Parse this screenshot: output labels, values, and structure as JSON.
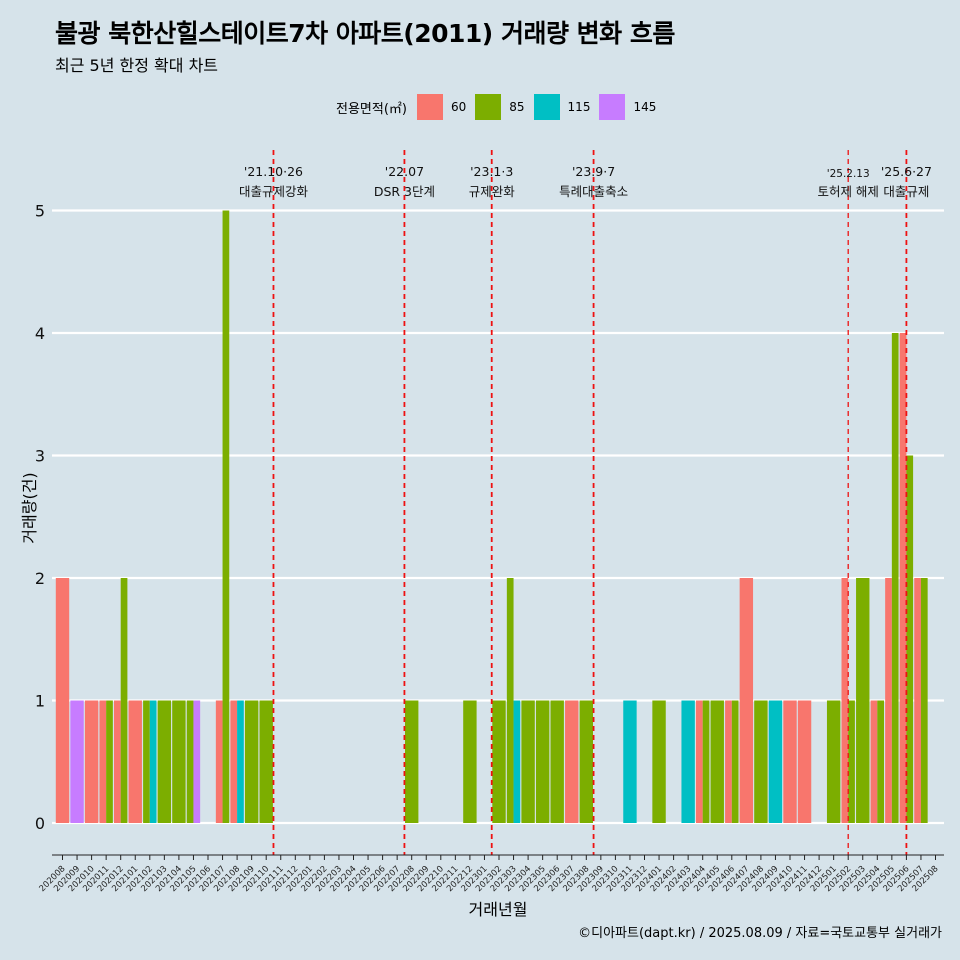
{
  "title": "불광 북한산힐스테이트7차 아파트(2011) 거래량 변화 흐름",
  "subtitle": "최근 5년 한정 확대 차트",
  "caption": "©디아파트(dapt.kr) / 2025.08.09 / 자료=국토교통부 실거래가",
  "legend": {
    "title": "전용면적(㎡)",
    "items": [
      {
        "label": "60",
        "color": "#F8766D"
      },
      {
        "label": "85",
        "color": "#7CAE00"
      },
      {
        "label": "115",
        "color": "#00BFC4"
      },
      {
        "label": "145",
        "color": "#C77CFF"
      }
    ]
  },
  "chart_data": {
    "type": "bar",
    "stacking": "dodged",
    "title": "불광 북한산힐스테이트7차 아파트(2011) 거래량 변화 흐름",
    "xlabel": "거래년월",
    "ylabel": "거래량(건)",
    "ylim": [
      0,
      5
    ],
    "yticks": [
      0,
      1,
      2,
      3,
      4,
      5
    ],
    "grid": "horizontal",
    "legend_position": "top",
    "categories": [
      "202008",
      "202009",
      "202010",
      "202011",
      "202012",
      "202101",
      "202102",
      "202103",
      "202104",
      "202105",
      "202106",
      "202107",
      "202108",
      "202109",
      "202110",
      "202111",
      "202112",
      "202201",
      "202202",
      "202203",
      "202204",
      "202205",
      "202206",
      "202207",
      "202208",
      "202209",
      "202210",
      "202211",
      "202212",
      "202301",
      "202302",
      "202303",
      "202304",
      "202305",
      "202306",
      "202307",
      "202308",
      "202309",
      "202310",
      "202311",
      "202312",
      "202401",
      "202402",
      "202403",
      "202404",
      "202405",
      "202406",
      "202407",
      "202408",
      "202409",
      "202410",
      "202411",
      "202412",
      "202501",
      "202502",
      "202503",
      "202504",
      "202505",
      "202506",
      "202507",
      "202508"
    ],
    "data": [
      {
        "month": "202008",
        "values": {
          "60": 2
        }
      },
      {
        "month": "202009",
        "values": {
          "145": 1
        }
      },
      {
        "month": "202010",
        "values": {
          "60": 1
        }
      },
      {
        "month": "202011",
        "values": {
          "60": 1,
          "85": 1
        }
      },
      {
        "month": "202012",
        "values": {
          "60": 1,
          "85": 2
        }
      },
      {
        "month": "202101",
        "values": {
          "60": 1
        }
      },
      {
        "month": "202102",
        "values": {
          "85": 1,
          "115": 1
        }
      },
      {
        "month": "202103",
        "values": {
          "85": 1
        }
      },
      {
        "month": "202104",
        "values": {
          "85": 1
        }
      },
      {
        "month": "202105",
        "values": {
          "85": 1,
          "145": 1
        }
      },
      {
        "month": "202107",
        "values": {
          "60": 1,
          "85": 5
        }
      },
      {
        "month": "202108",
        "values": {
          "60": 1,
          "115": 1
        }
      },
      {
        "month": "202109",
        "values": {
          "85": 1
        }
      },
      {
        "month": "202110",
        "values": {
          "85": 1
        }
      },
      {
        "month": "202208",
        "values": {
          "85": 1
        }
      },
      {
        "month": "202212",
        "values": {
          "85": 1
        }
      },
      {
        "month": "202302",
        "values": {
          "85": 1
        }
      },
      {
        "month": "202303",
        "values": {
          "85": 2,
          "115": 1
        }
      },
      {
        "month": "202304",
        "values": {
          "85": 1
        }
      },
      {
        "month": "202305",
        "values": {
          "85": 1
        }
      },
      {
        "month": "202306",
        "values": {
          "85": 1
        }
      },
      {
        "month": "202307",
        "values": {
          "60": 1
        }
      },
      {
        "month": "202308",
        "values": {
          "85": 1
        }
      },
      {
        "month": "202311",
        "values": {
          "115": 1
        }
      },
      {
        "month": "202401",
        "values": {
          "85": 1
        }
      },
      {
        "month": "202403",
        "values": {
          "115": 1
        }
      },
      {
        "month": "202404",
        "values": {
          "60": 1,
          "85": 1
        }
      },
      {
        "month": "202405",
        "values": {
          "85": 1
        }
      },
      {
        "month": "202406",
        "values": {
          "60": 1,
          "85": 1
        }
      },
      {
        "month": "202407",
        "values": {
          "60": 2
        }
      },
      {
        "month": "202408",
        "values": {
          "85": 1
        }
      },
      {
        "month": "202409",
        "values": {
          "115": 1
        }
      },
      {
        "month": "202410",
        "values": {
          "60": 1
        }
      },
      {
        "month": "202411",
        "values": {
          "60": 1
        }
      },
      {
        "month": "202501",
        "values": {
          "85": 1
        }
      },
      {
        "month": "202502",
        "values": {
          "60": 2,
          "85": 1
        }
      },
      {
        "month": "202503",
        "values": {
          "85": 2
        }
      },
      {
        "month": "202504",
        "values": {
          "60": 1,
          "85": 1
        }
      },
      {
        "month": "202505",
        "values": {
          "60": 2,
          "85": 4
        }
      },
      {
        "month": "202506",
        "values": {
          "60": 4,
          "85": 3
        }
      },
      {
        "month": "202507",
        "values": {
          "60": 2,
          "85": 2
        }
      }
    ],
    "annotations": [
      {
        "at": "202110",
        "offset": 0.5,
        "line1": "'21.10·26",
        "line2": "대출규제강화"
      },
      {
        "at": "202207",
        "offset": 0.5,
        "line1": "'22.07",
        "line2": "DSR 3단계"
      },
      {
        "at": "202301",
        "offset": 0.5,
        "line1": "'23.1·3",
        "line2": "규제완화"
      },
      {
        "at": "202309",
        "offset": -0.5,
        "line1": "'23.9·7",
        "line2": "특례대출축소"
      },
      {
        "at": "202502",
        "offset": 0,
        "line1": "'25.2.13",
        "line2": "토허제 해제",
        "small": true
      },
      {
        "at": "202506",
        "offset": 0,
        "line1": "'25.6·27",
        "line2": "대출규제"
      }
    ]
  }
}
